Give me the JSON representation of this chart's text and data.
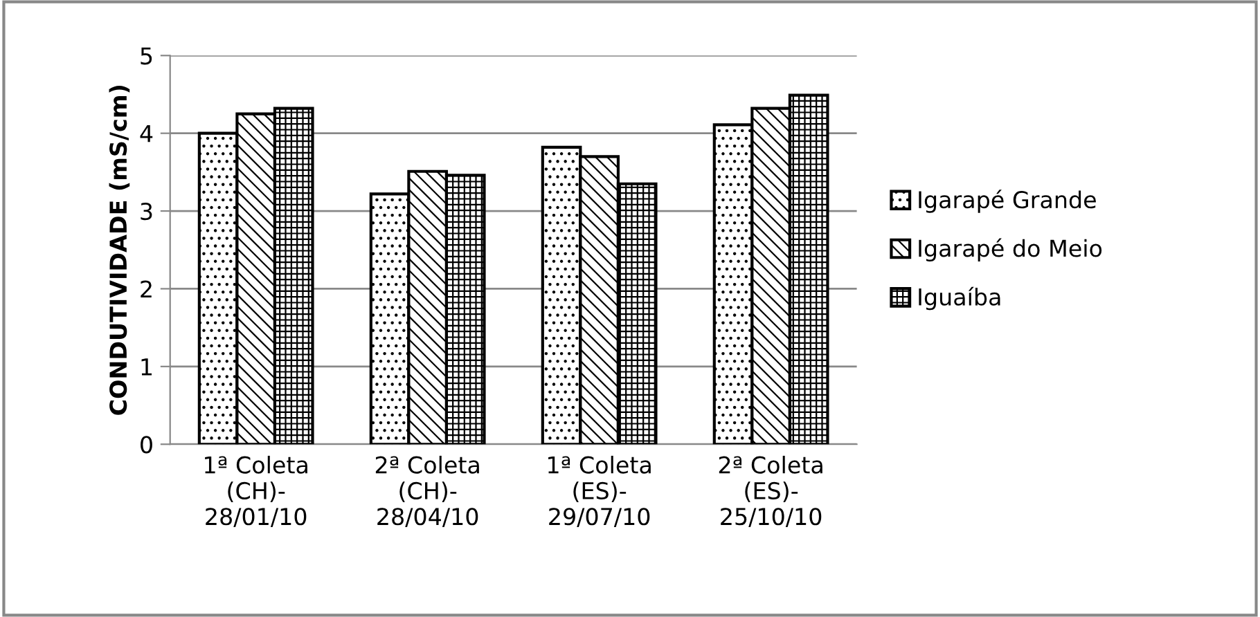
{
  "chart_data": {
    "type": "bar",
    "ylabel": "CONDUTIVIDADE (mS/cm)",
    "categories": [
      "1ª Coleta\n(CH)-\n28/01/10",
      "2ª Coleta\n(CH)-\n28/04/10",
      "1ª Coleta\n(ES)-\n29/07/10",
      "2ª Coleta\n(ES)-\n25/10/10"
    ],
    "series": [
      {
        "name": "Igarapé Grande",
        "color": "#000000",
        "values": [
          4.0,
          3.22,
          3.82,
          4.11
        ]
      },
      {
        "name": "Igarapé do Meio",
        "color": "#000000",
        "values": [
          4.25,
          3.51,
          3.7,
          4.32
        ]
      },
      {
        "name": "Iguaíba",
        "color": "#000000",
        "values": [
          4.32,
          3.46,
          3.35,
          4.49
        ]
      }
    ],
    "ylim": [
      0,
      5
    ],
    "yticks": [
      0,
      1,
      2,
      3,
      4,
      5
    ],
    "grid": "y",
    "legend": "right"
  }
}
